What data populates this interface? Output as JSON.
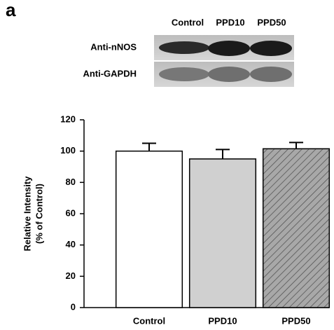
{
  "panel_label": "a",
  "blot": {
    "columns": [
      "Control",
      "PPD10",
      "PPD50"
    ],
    "rows": [
      "Anti-nNOS",
      "Anti-GAPDH"
    ]
  },
  "chart_data": {
    "type": "bar",
    "y_label": [
      "Relative Intensity",
      "(% of Control)"
    ],
    "categories": [
      "Control",
      "PPD10",
      "PPD50"
    ],
    "values": [
      100,
      95,
      101.5
    ],
    "errors": [
      5,
      6,
      4
    ],
    "colors": [
      "#ffffff",
      "#d0d0d0",
      "#a8a8a8"
    ],
    "hatches": [
      false,
      false,
      true
    ],
    "ylim": [
      0,
      120
    ],
    "yticks": [
      0,
      20,
      40,
      60,
      80,
      100,
      120
    ]
  }
}
